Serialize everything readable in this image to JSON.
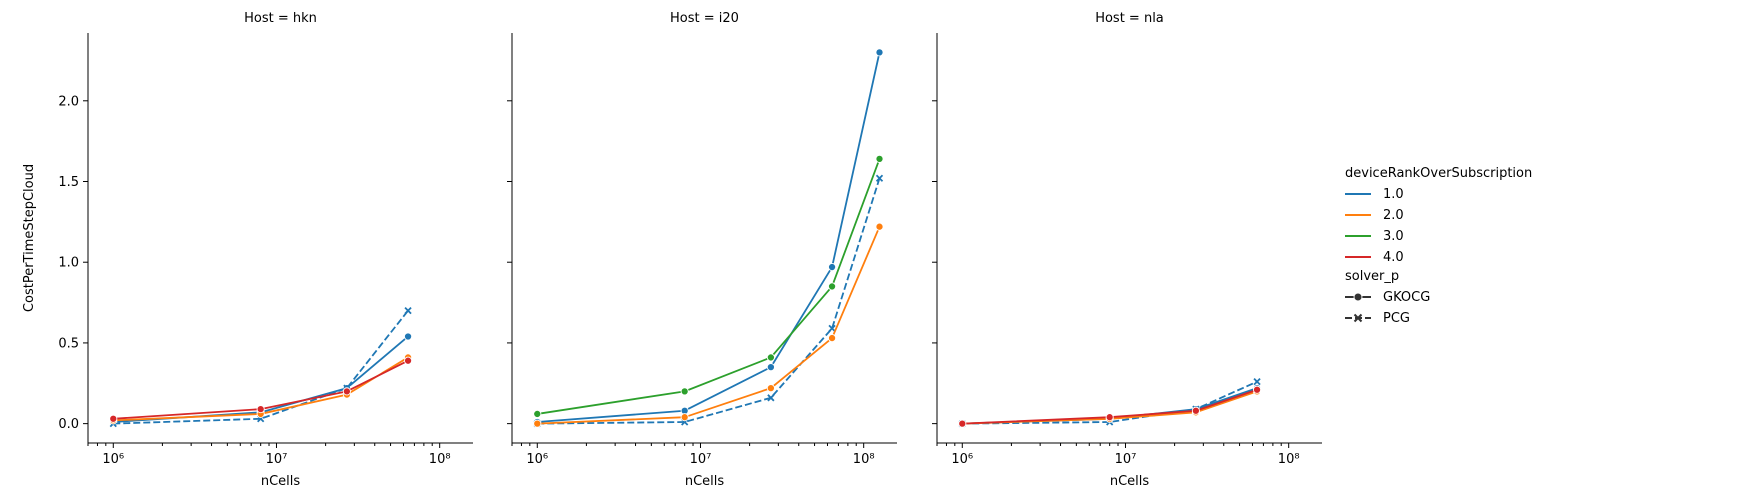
{
  "chart_data": {
    "type": "line",
    "facet_var": "Host",
    "panels": [
      {
        "title": "Host = hkn",
        "series": [
          {
            "rank": "1.0",
            "solver": "GKOCG",
            "points": [
              [
                1000000,
                0.01
              ],
              [
                8000000,
                0.07
              ],
              [
                27000000,
                0.22
              ],
              [
                64000000,
                0.54
              ]
            ]
          },
          {
            "rank": "1.0",
            "solver": "PCG",
            "points": [
              [
                1000000,
                0.0
              ],
              [
                8000000,
                0.03
              ],
              [
                27000000,
                0.22
              ],
              [
                64000000,
                0.7
              ]
            ]
          },
          {
            "rank": "2.0",
            "solver": "GKOCG",
            "points": [
              [
                1000000,
                0.02
              ],
              [
                8000000,
                0.06
              ],
              [
                27000000,
                0.18
              ],
              [
                64000000,
                0.41
              ]
            ]
          },
          {
            "rank": "4.0",
            "solver": "GKOCG",
            "points": [
              [
                1000000,
                0.03
              ],
              [
                8000000,
                0.09
              ],
              [
                27000000,
                0.2
              ],
              [
                64000000,
                0.39
              ]
            ]
          }
        ]
      },
      {
        "title": "Host = i20",
        "series": [
          {
            "rank": "1.0",
            "solver": "GKOCG",
            "points": [
              [
                1000000,
                0.01
              ],
              [
                8000000,
                0.08
              ],
              [
                27000000,
                0.35
              ],
              [
                64000000,
                0.97
              ],
              [
                125000000,
                2.3
              ]
            ]
          },
          {
            "rank": "1.0",
            "solver": "PCG",
            "points": [
              [
                1000000,
                0.0
              ],
              [
                8000000,
                0.01
              ],
              [
                27000000,
                0.16
              ],
              [
                64000000,
                0.59
              ],
              [
                125000000,
                1.52
              ]
            ]
          },
          {
            "rank": "2.0",
            "solver": "GKOCG",
            "points": [
              [
                1000000,
                0.0
              ],
              [
                8000000,
                0.04
              ],
              [
                27000000,
                0.22
              ],
              [
                64000000,
                0.53
              ],
              [
                125000000,
                1.22
              ]
            ]
          },
          {
            "rank": "3.0",
            "solver": "GKOCG",
            "points": [
              [
                1000000,
                0.06
              ],
              [
                8000000,
                0.2
              ],
              [
                27000000,
                0.41
              ],
              [
                64000000,
                0.85
              ],
              [
                125000000,
                1.64
              ]
            ]
          }
        ]
      },
      {
        "title": "Host = nla",
        "series": [
          {
            "rank": "1.0",
            "solver": "GKOCG",
            "points": [
              [
                1000000,
                0.0
              ],
              [
                8000000,
                0.03
              ],
              [
                27000000,
                0.09
              ],
              [
                64000000,
                0.22
              ]
            ]
          },
          {
            "rank": "1.0",
            "solver": "PCG",
            "points": [
              [
                1000000,
                0.0
              ],
              [
                8000000,
                0.01
              ],
              [
                27000000,
                0.09
              ],
              [
                64000000,
                0.26
              ]
            ]
          },
          {
            "rank": "2.0",
            "solver": "GKOCG",
            "points": [
              [
                1000000,
                0.0
              ],
              [
                8000000,
                0.03
              ],
              [
                27000000,
                0.07
              ],
              [
                64000000,
                0.2
              ]
            ]
          },
          {
            "rank": "4.0",
            "solver": "GKOCG",
            "points": [
              [
                1000000,
                0.0
              ],
              [
                8000000,
                0.04
              ],
              [
                27000000,
                0.08
              ],
              [
                64000000,
                0.21
              ]
            ]
          }
        ]
      }
    ],
    "xlabel": "nCells",
    "ylabel": "CostPerTimeStepCloud",
    "xscale": "log",
    "xlim": [
      700000,
      160000000
    ],
    "ylim": [
      -0.12,
      2.42
    ],
    "xticks": [
      {
        "value": 1000000,
        "label": "10⁶"
      },
      {
        "value": 10000000,
        "label": "10⁷"
      },
      {
        "value": 100000000,
        "label": "10⁸"
      }
    ],
    "yticks": [
      {
        "value": 0.0,
        "label": "0.0"
      },
      {
        "value": 0.5,
        "label": "0.5"
      },
      {
        "value": 1.0,
        "label": "1.0"
      },
      {
        "value": 1.5,
        "label": "1.5"
      },
      {
        "value": 2.0,
        "label": "2.0"
      }
    ],
    "grid": false,
    "legend": {
      "placement": "right",
      "hue_title": "deviceRankOverSubscription",
      "hue_entries": [
        {
          "label": "1.0",
          "color": "#1f77b4"
        },
        {
          "label": "2.0",
          "color": "#ff7f0e"
        },
        {
          "label": "3.0",
          "color": "#2ca02c"
        },
        {
          "label": "4.0",
          "color": "#d62728"
        }
      ],
      "style_title": "solver_p",
      "style_entries": [
        {
          "label": "GKOCG",
          "marker": "circle",
          "dash": "solid"
        },
        {
          "label": "PCG",
          "marker": "x",
          "dash": "dashed"
        }
      ]
    }
  }
}
